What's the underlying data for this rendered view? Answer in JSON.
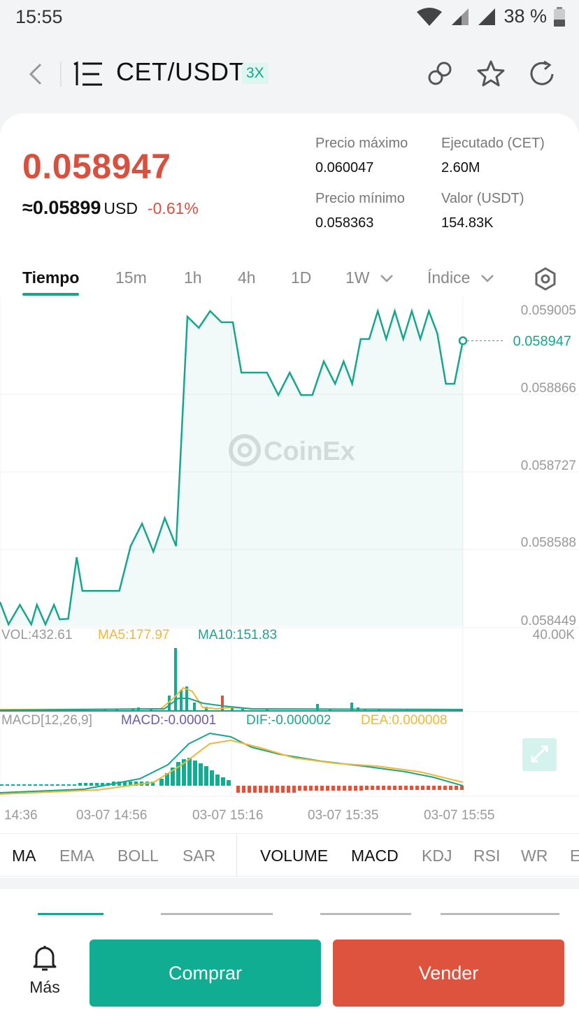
{
  "status": {
    "time": "15:55",
    "battery": "38 %"
  },
  "header": {
    "pair": "CET/USDT",
    "leverage": "3X"
  },
  "ticker": {
    "price": "0.058947",
    "usd_value": "≈0.05899",
    "usd_unit": "USD",
    "change": "-0.61%",
    "stats": [
      {
        "label": "Precio máximo",
        "value": "0.060047"
      },
      {
        "label": "Ejecutado (CET)",
        "value": "2.60M"
      },
      {
        "label": "Precio mínimo",
        "value": "0.058363"
      },
      {
        "label": "Valor (USDT)",
        "value": "154.83K"
      }
    ]
  },
  "tabs": [
    {
      "label": "Tiempo",
      "active": true
    },
    {
      "label": "15m"
    },
    {
      "label": "1h"
    },
    {
      "label": "4h"
    },
    {
      "label": "1D"
    },
    {
      "label": "1W"
    },
    {
      "label": "Índice"
    }
  ],
  "chart_data": {
    "type": "line",
    "watermark": "CoinEx",
    "y_ticks": [
      "0.059005",
      "0.058866",
      "0.058727",
      "0.058588",
      "0.058449"
    ],
    "ylim": [
      0.058449,
      0.059005
    ],
    "last_price": "0.058947",
    "x_labels": [
      "14:36",
      "03-07 14:56",
      "03-07 15:16",
      "03-07 15:35",
      "03-07 15:55"
    ],
    "x": [
      0,
      3,
      7,
      11,
      13,
      16,
      19,
      21,
      24,
      27,
      29,
      32,
      35,
      38,
      42,
      46,
      50,
      54,
      58,
      62,
      66,
      70,
      74,
      78,
      82,
      85,
      88,
      91,
      94,
      98,
      102,
      106,
      110,
      114,
      118,
      121,
      124,
      127,
      130,
      133,
      136,
      139,
      142,
      145,
      148,
      151,
      154,
      157,
      160,
      163
    ],
    "price": [
      0.05848,
      0.05844,
      0.058475,
      0.05844,
      0.058475,
      0.05844,
      0.058475,
      0.058449,
      0.05845,
      0.05856,
      0.0585,
      0.0585,
      0.0585,
      0.0585,
      0.0585,
      0.05858,
      0.05862,
      0.05857,
      0.05863,
      0.05858,
      0.05899,
      0.05897,
      0.059,
      0.05898,
      0.05898,
      0.05889,
      0.05889,
      0.05889,
      0.05889,
      0.05885,
      0.05889,
      0.05885,
      0.05885,
      0.05891,
      0.05887,
      0.05891,
      0.05887,
      0.05895,
      0.05895,
      0.059,
      0.05895,
      0.059,
      0.05895,
      0.059,
      0.05895,
      0.059,
      0.05896,
      0.05887,
      0.05887,
      0.058947
    ],
    "volume_label": "VOL:432.61",
    "ma5_label": "MA5:177.97",
    "ma10_label": "MA10:151.83",
    "volume_max": "40.00K",
    "macd_label": "MACD[12,26,9]",
    "macd_value": "MACD:-0.00001",
    "dif_value": "DIF:-0.000002",
    "dea_value": "DEA:0.000008",
    "colors": {
      "line": "#17a68c",
      "ma5": "#f2b733",
      "macd": "#6e5aa8",
      "up": "#11ad93",
      "down": "#dd533e"
    }
  },
  "indicators_main": [
    "MA",
    "EMA",
    "BOLL",
    "SAR"
  ],
  "indicators_sub": [
    "VOLUME",
    "MACD",
    "KDJ",
    "RSI",
    "WR",
    "E"
  ],
  "bottom": {
    "more_label": "Más",
    "buy_label": "Comprar",
    "sell_label": "Vender"
  }
}
